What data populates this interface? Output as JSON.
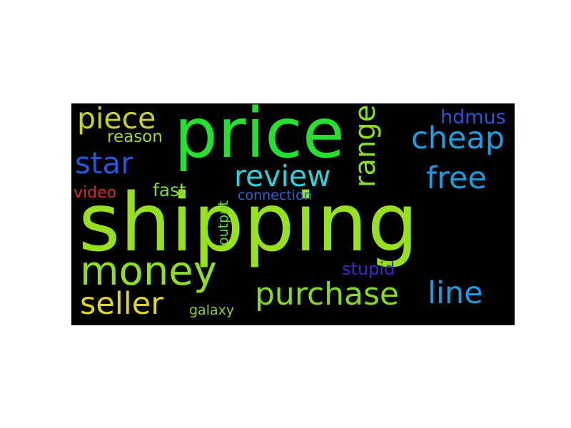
{
  "colors": {
    "background": "#ffffff",
    "cloud_background": "#000000"
  },
  "words": [
    {
      "text": "shipping",
      "color": "#97e01c"
    },
    {
      "text": "price",
      "color": "#25e030"
    },
    {
      "text": "money",
      "color": "#8fde1f"
    },
    {
      "text": "purchase",
      "color": "#86da1f"
    },
    {
      "text": "seller",
      "color": "#dcd624"
    },
    {
      "text": "review",
      "color": "#2fd0d8"
    },
    {
      "text": "range",
      "color": "#8ade20"
    },
    {
      "text": "cheap",
      "color": "#1e9de0"
    },
    {
      "text": "free",
      "color": "#1c9ae0"
    },
    {
      "text": "line",
      "color": "#1c9ae0"
    },
    {
      "text": "star",
      "color": "#2556e0"
    },
    {
      "text": "piece",
      "color": "#c8d520"
    },
    {
      "text": "hdmus",
      "color": "#2a55d9"
    },
    {
      "text": "fast",
      "color": "#7bd832"
    },
    {
      "text": "reason",
      "color": "#a3d824"
    },
    {
      "text": "video",
      "color": "#d42a26"
    },
    {
      "text": "connection",
      "color": "#2566d2"
    },
    {
      "text": "stupid",
      "color": "#4325d2"
    },
    {
      "text": "output",
      "color": "#5fd83a"
    },
    {
      "text": "galaxy",
      "color": "#8fd22a"
    }
  ]
}
